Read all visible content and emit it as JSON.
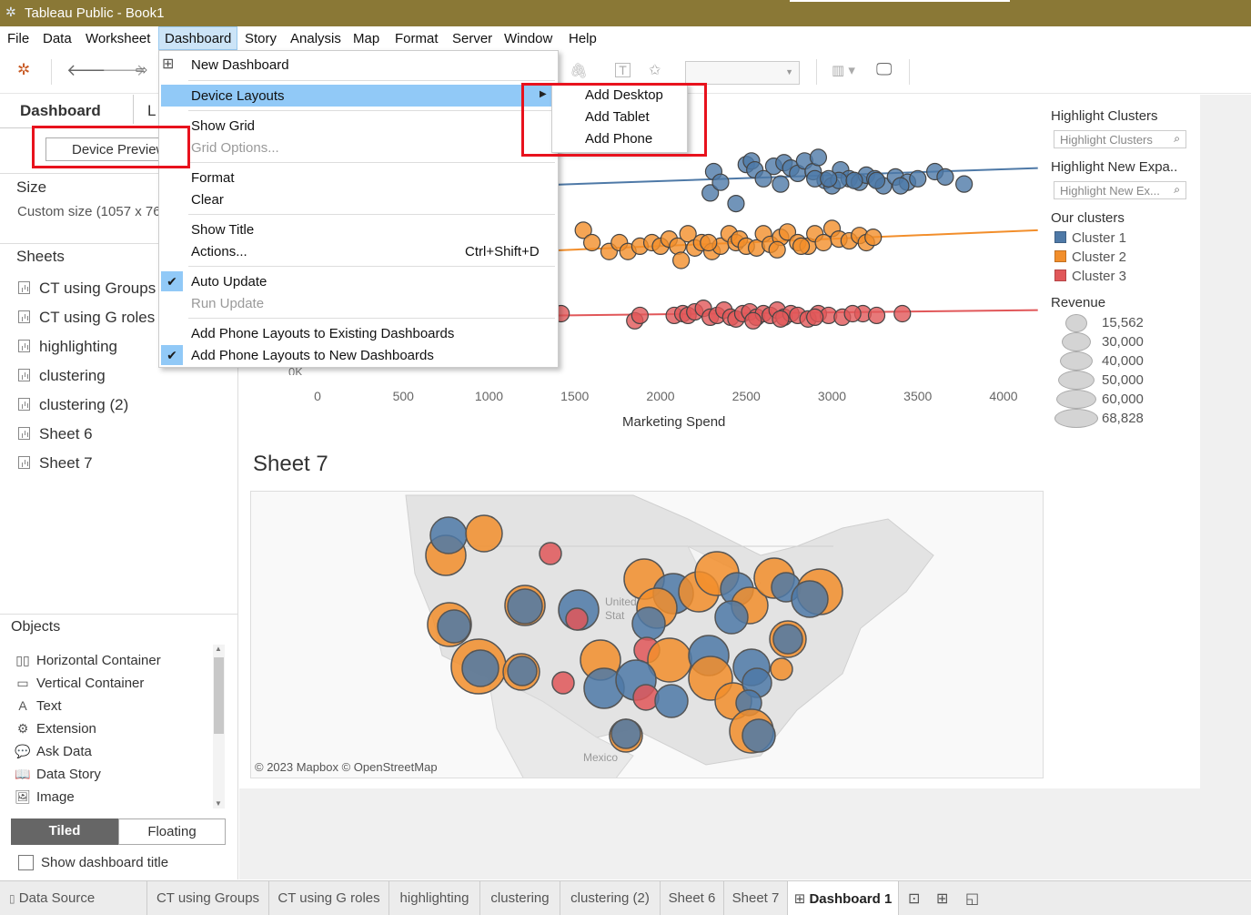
{
  "titlebar": {
    "title": "Tableau Public - Book1"
  },
  "menubar": {
    "items": [
      "File",
      "Data",
      "Worksheet",
      "Dashboard",
      "Story",
      "Analysis",
      "Map",
      "Format",
      "Server",
      "Window",
      "Help"
    ]
  },
  "dashboard_menu": {
    "new_dashboard": "New Dashboard",
    "device_layouts": "Device Layouts",
    "show_grid": "Show Grid",
    "grid_options": "Grid Options...",
    "format": "Format",
    "clear": "Clear",
    "show_title": "Show Title",
    "actions": "Actions...",
    "actions_shortcut": "Ctrl+Shift+D",
    "auto_update": "Auto Update",
    "run_update": "Run Update",
    "add_phone_existing": "Add Phone Layouts to Existing Dashboards",
    "add_phone_new": "Add Phone Layouts to New Dashboards"
  },
  "device_layouts_submenu": {
    "add_desktop": "Add Desktop",
    "add_tablet": "Add Tablet",
    "add_phone": "Add Phone"
  },
  "left_pane": {
    "tab_dashboard": "Dashboard",
    "tab_layout": "L",
    "device_preview": "Device Preview",
    "size_title": "Size",
    "size_value": "Custom size (1057 x 762)",
    "sheets_title": "Sheets",
    "sheets": [
      "CT using Groups",
      "CT using G roles",
      "highlighting",
      "clustering",
      "clustering (2)",
      "Sheet 6",
      "Sheet 7"
    ],
    "objects_title": "Objects",
    "objects": [
      {
        "label": "Horizontal Container",
        "icon": "horizontal-container-icon"
      },
      {
        "label": "Vertical Container",
        "icon": "vertical-container-icon"
      },
      {
        "label": "Text",
        "icon": "text-icon"
      },
      {
        "label": "Extension",
        "icon": "extension-icon"
      },
      {
        "label": "Ask Data",
        "icon": "ask-data-icon"
      },
      {
        "label": "Data Story",
        "icon": "data-story-icon"
      },
      {
        "label": "Image",
        "icon": "image-icon"
      }
    ],
    "tiled": "Tiled",
    "floating": "Floating",
    "show_dashboard_title": "Show dashboard title"
  },
  "legends": {
    "highlight_clusters_title": "Highlight Clusters",
    "highlight_clusters_placeholder": "Highlight Clusters",
    "highlight_new_title": "Highlight New Expa..",
    "highlight_new_placeholder": "Highlight New Ex...",
    "clusters_title": "Our clusters",
    "clusters": [
      {
        "name": "Cluster 1",
        "color": "#4e79a7"
      },
      {
        "name": "Cluster 2",
        "color": "#f28e2b"
      },
      {
        "name": "Cluster 3",
        "color": "#e15759"
      }
    ],
    "revenue_title": "Revenue",
    "revenue_values": [
      "15,562",
      "30,000",
      "40,000",
      "50,000",
      "60,000",
      "68,828"
    ]
  },
  "map_sheet": {
    "title": "Sheet 7",
    "attribution": "© 2023 Mapbox © OpenStreetMap",
    "label_us_1": "United",
    "label_us_2": "Stat",
    "label_mexico": "Mexico"
  },
  "chart_data": {
    "type": "scatter",
    "xlabel": "Marketing Spend",
    "x_ticks": [
      0,
      500,
      1000,
      1500,
      2000,
      2500,
      3000,
      3500,
      4000
    ],
    "y_tick_visible": "0K",
    "xlim": [
      0,
      4200
    ],
    "series": [
      {
        "name": "Cluster 1",
        "color": "#4e79a7",
        "x": [
          2290,
          2440,
          2310,
          2500,
          2530,
          2550,
          2660,
          2720,
          2760,
          2800,
          2840,
          2890,
          2920,
          2960,
          3000,
          3050,
          3100,
          3160,
          3200,
          3250,
          3300,
          3370,
          3440,
          3500,
          3600,
          3660,
          3770,
          2600,
          2700,
          2900,
          3040,
          3130,
          3260,
          3400,
          2350,
          2980
        ],
        "y": [
          178,
          172,
          190,
          194,
          196,
          191,
          193,
          195,
          192,
          189,
          196,
          190,
          198,
          185,
          182,
          191,
          186,
          184,
          188,
          186,
          182,
          187,
          184,
          186,
          190,
          187,
          183,
          186,
          183,
          186,
          185,
          185,
          185,
          182,
          184,
          186
        ]
      },
      {
        "name": "Cluster 2",
        "color": "#f28e2b",
        "x": [
          1550,
          1600,
          1700,
          1760,
          1810,
          1880,
          1950,
          2000,
          2050,
          2100,
          2120,
          2160,
          2200,
          2240,
          2300,
          2350,
          2400,
          2440,
          2460,
          2500,
          2560,
          2600,
          2640,
          2700,
          2740,
          2800,
          2860,
          2900,
          2950,
          3000,
          3040,
          3100,
          3160,
          3200,
          3240,
          2280,
          2680,
          2820
        ],
        "y": [
          157,
          150,
          145,
          150,
          145,
          148,
          150,
          148,
          152,
          148,
          140,
          155,
          147,
          150,
          145,
          148,
          155,
          150,
          152,
          148,
          147,
          155,
          149,
          153,
          156,
          150,
          148,
          155,
          150,
          158,
          152,
          151,
          154,
          150,
          153,
          150,
          146,
          148
        ]
      },
      {
        "name": "Cluster 3",
        "color": "#e15759",
        "x": [
          1420,
          1850,
          1880,
          2080,
          2130,
          2160,
          2200,
          2250,
          2290,
          2330,
          2370,
          2410,
          2440,
          2480,
          2520,
          2560,
          2600,
          2640,
          2680,
          2720,
          2760,
          2800,
          2860,
          2920,
          2980,
          3060,
          3180,
          3260,
          3410,
          2540,
          2700,
          2900,
          3120
        ],
        "y": [
          110,
          106,
          109,
          109,
          110,
          109,
          111,
          113,
          108,
          109,
          112,
          108,
          107,
          110,
          111,
          108,
          110,
          109,
          112,
          108,
          110,
          109,
          107,
          110,
          109,
          108,
          110,
          109,
          110,
          106,
          107,
          108,
          110
        ]
      }
    ]
  }
}
